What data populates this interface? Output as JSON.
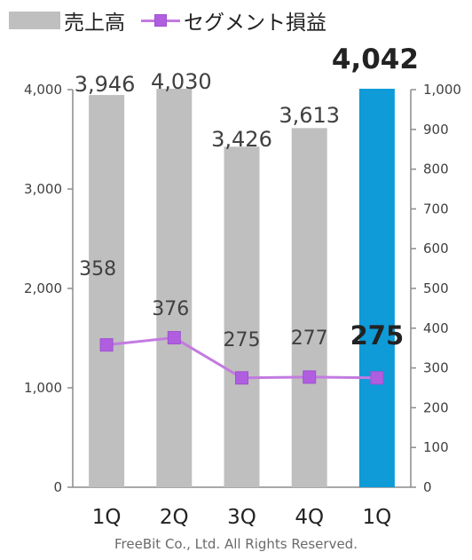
{
  "legend": {
    "bar_label": "売上高",
    "line_label": "セグメント損益"
  },
  "footer": "FreeBit Co., Ltd. All Rights Reserved.",
  "chart_data": {
    "type": "bar",
    "categories": [
      "1Q",
      "2Q",
      "3Q",
      "4Q",
      "1Q"
    ],
    "series": [
      {
        "name": "売上高",
        "type": "bar",
        "axis": "left",
        "values": [
          3946,
          4030,
          3426,
          3613,
          4042
        ],
        "labels": [
          "3,946",
          "4,030",
          "3,426",
          "3,613",
          "4,042"
        ],
        "colors": [
          "#bfbfbf",
          "#bfbfbf",
          "#bfbfbf",
          "#bfbfbf",
          "#0e9bd8"
        ]
      },
      {
        "name": "セグメント損益",
        "type": "line",
        "axis": "right",
        "values": [
          358,
          376,
          275,
          277,
          275
        ],
        "labels": [
          "358",
          "376",
          "275",
          "277",
          "275"
        ],
        "color": "#c27be0"
      }
    ],
    "y_left": {
      "min": 0,
      "max": 4000,
      "ticks": [
        0,
        1000,
        2000,
        3000,
        4000
      ],
      "tick_labels": [
        "0",
        "1,000",
        "2,000",
        "3,000",
        "4,000"
      ]
    },
    "y_right": {
      "min": 0,
      "max": 1000,
      "ticks": [
        0,
        100,
        200,
        300,
        400,
        500,
        600,
        700,
        800,
        900,
        1000
      ],
      "tick_labels": [
        "0",
        "100",
        "200",
        "300",
        "400",
        "500",
        "600",
        "700",
        "800",
        "900",
        "1,000"
      ]
    },
    "grid": false,
    "legend_position": "top-left",
    "highlight_last": true
  }
}
